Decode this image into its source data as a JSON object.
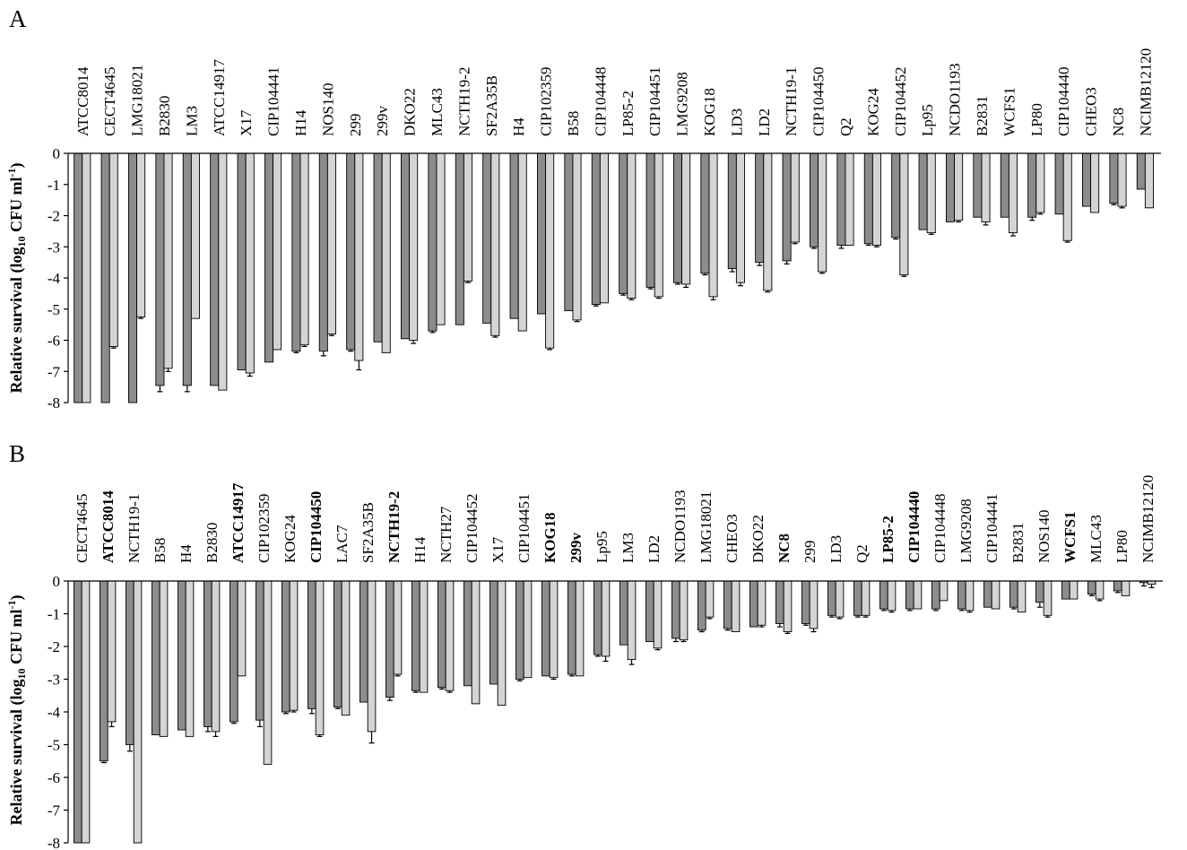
{
  "chart_data": [
    {
      "type": "bar",
      "panel": "A",
      "ylabel_main": "Relative survival (log",
      "ylabel_sub": "10",
      "ylabel_unit": " CFU ml",
      "ylabel_sup": "-1",
      "ylabel_close": ")",
      "ylim": [
        -8,
        0
      ],
      "yticks": [
        "0",
        "-1",
        "-2",
        "-3",
        "-4",
        "-5",
        "-6",
        "-7",
        "-8"
      ],
      "colors": {
        "series1": "#8c8c8c",
        "series2": "#d4d4d4"
      },
      "categories": [
        "ATCC8014",
        "CECT4645",
        "LMG18021",
        "B2830",
        "LM3",
        "ATCC14917",
        "X17",
        "CIP104441",
        "H14",
        "NOS140",
        "299",
        "299v",
        "DKO22",
        "MLC43",
        "NCTH19-2",
        "SF2A35B",
        "H4",
        "CIP102359",
        "B58",
        "CIP104448",
        "LP85-2",
        "CIP104451",
        "LMG9208",
        "KOG18",
        "LD3",
        "LD2",
        "NCTH19-1",
        "CIP104450",
        "Q2",
        "KOG24",
        "CIP104452",
        "Lp95",
        "NCDO1193",
        "B2831",
        "WCFS1",
        "LP80",
        "CIP104440",
        "CHEO3",
        "NC8",
        "NCIMB12120"
      ],
      "bold": [],
      "series": [
        {
          "values": [
            -8.0,
            -8.0,
            -8.0,
            -7.45,
            -7.45,
            -7.45,
            -6.95,
            -6.7,
            -6.35,
            -6.35,
            -6.3,
            -6.05,
            -5.95,
            -5.7,
            -5.5,
            -5.45,
            -5.3,
            -5.15,
            -5.05,
            -4.85,
            -4.5,
            -4.3,
            -4.15,
            -3.85,
            -3.7,
            -3.5,
            -3.45,
            -3.0,
            -2.95,
            -2.9,
            -2.7,
            -2.45,
            -2.2,
            -2.05,
            -2.05,
            -2.05,
            -1.95,
            -1.7,
            -1.6,
            -1.15
          ],
          "errors": [
            0,
            0,
            0,
            0.2,
            0.2,
            0,
            0,
            0,
            0.05,
            0.15,
            0.05,
            0,
            0,
            0.05,
            0,
            0,
            0,
            0,
            0,
            0.05,
            0.05,
            0.05,
            0.05,
            0.05,
            0.1,
            0.1,
            0.1,
            0.05,
            0.1,
            0.05,
            0.05,
            0,
            0,
            0,
            0,
            0.1,
            0,
            0,
            0.05,
            0
          ]
        },
        {
          "values": [
            -8.0,
            -6.2,
            -5.25,
            -6.9,
            -5.3,
            -7.6,
            -7.05,
            -6.3,
            -6.15,
            -5.8,
            -6.65,
            -6.4,
            -6.0,
            -5.5,
            -4.1,
            -5.85,
            -5.7,
            -6.25,
            -5.35,
            -4.8,
            -4.65,
            -4.6,
            -4.2,
            -4.6,
            -4.15,
            -4.4,
            -2.85,
            -3.8,
            -2.95,
            -2.95,
            -3.9,
            -2.55,
            -2.15,
            -2.2,
            -2.55,
            -1.9,
            -2.8,
            -1.9,
            -1.7,
            -1.75
          ],
          "errors": [
            0,
            0.05,
            0.05,
            0.1,
            0,
            0,
            0.1,
            0,
            0.05,
            0.05,
            0.3,
            0,
            0.1,
            0,
            0.05,
            0.05,
            0,
            0.05,
            0.05,
            0,
            0.05,
            0.05,
            0.1,
            0.1,
            0.1,
            0.05,
            0.05,
            0.05,
            0,
            0.05,
            0.05,
            0.05,
            0.05,
            0.1,
            0.1,
            0.05,
            0.05,
            0,
            0.05,
            0
          ]
        }
      ]
    },
    {
      "type": "bar",
      "panel": "B",
      "ylabel_main": "Relative survival (log",
      "ylabel_sub": "10",
      "ylabel_unit": " CFU ml",
      "ylabel_sup": "-1",
      "ylabel_close": ")",
      "ylim": [
        -8,
        0
      ],
      "yticks": [
        "0",
        "-1",
        "-2",
        "-3",
        "-4",
        "-5",
        "-6",
        "-7",
        "-8"
      ],
      "colors": {
        "series1": "#8c8c8c",
        "series2": "#d4d4d4"
      },
      "categories": [
        "CECT4645",
        "ATCC8014",
        "NCTH19-1",
        "B58",
        "H4",
        "B2830",
        "ATCC14917",
        "CIP102359",
        "KOG24",
        "CIP104450",
        "LAC7",
        "SF2A35B",
        "NCTH19-2",
        "H14",
        "NCTH27",
        "CIP104452",
        "X17",
        "CIP104451",
        "KOG18",
        "299v",
        "Lp95",
        "LM3",
        "LD2",
        "NCDO1193",
        "LMG18021",
        "CHEO3",
        "DKO22",
        "NC8",
        "299",
        "LD3",
        "Q2",
        "LP85-2",
        "CIP104440",
        "CIP104448",
        "LMG9208",
        "CIP104441",
        "B2831",
        "NOS140",
        "WCFS1",
        "MLC43",
        "LP80",
        "NCIMB12120"
      ],
      "bold": [
        "ATCC8014",
        "ATCC14917",
        "CIP104450",
        "NCTH19-2",
        "KOG18",
        "299v",
        "NC8",
        "LP85-2",
        "CIP104440",
        "WCFS1"
      ],
      "series": [
        {
          "values": [
            -8.0,
            -5.5,
            -5.0,
            -4.7,
            -4.55,
            -4.45,
            -4.3,
            -4.25,
            -4.0,
            -3.9,
            -3.85,
            -3.7,
            -3.55,
            -3.35,
            -3.25,
            -3.2,
            -3.15,
            -3.0,
            -2.9,
            -2.85,
            -2.25,
            -1.95,
            -1.85,
            -1.75,
            -1.5,
            -1.45,
            -1.4,
            -1.3,
            -1.3,
            -1.05,
            -1.05,
            -0.85,
            -0.85,
            -0.85,
            -0.85,
            -0.8,
            -0.8,
            -0.65,
            -0.55,
            -0.4,
            -0.3,
            -0.05
          ],
          "errors": [
            0,
            0.05,
            0.2,
            0,
            0,
            0.15,
            0.05,
            0.2,
            0.05,
            0.15,
            0.05,
            0,
            0.1,
            0.05,
            0.05,
            0,
            0,
            0.05,
            0,
            0.05,
            0.05,
            0,
            0,
            0.1,
            0.05,
            0.05,
            0,
            0.1,
            0.05,
            0.05,
            0.05,
            0.05,
            0.05,
            0.05,
            0.05,
            0,
            0.05,
            0.15,
            0,
            0.05,
            0.05,
            0.1
          ]
        },
        {
          "values": [
            -8.0,
            -4.3,
            -8.0,
            -4.75,
            -4.75,
            -4.6,
            -2.9,
            -5.6,
            -3.95,
            -4.7,
            -4.1,
            -4.6,
            -2.85,
            -3.4,
            -3.35,
            -3.75,
            -3.8,
            -2.95,
            -2.95,
            -2.9,
            -2.3,
            -2.4,
            -2.05,
            -1.8,
            -1.1,
            -1.55,
            -1.35,
            -1.55,
            -1.45,
            -1.1,
            -1.05,
            -0.9,
            -0.85,
            -0.6,
            -0.9,
            -0.85,
            -0.95,
            -1.05,
            -0.55,
            -0.55,
            -0.45,
            -0.1
          ],
          "errors": [
            0,
            0.15,
            0,
            0,
            0,
            0.15,
            0,
            0,
            0.05,
            0.05,
            0,
            0.35,
            0.05,
            0,
            0.05,
            0,
            0,
            0,
            0.05,
            0,
            0.15,
            0.15,
            0.05,
            0.05,
            0.05,
            0,
            0.05,
            0.05,
            0.1,
            0.05,
            0.05,
            0.05,
            0,
            0,
            0.05,
            0,
            0,
            0.05,
            0,
            0.05,
            0,
            0.1
          ]
        }
      ]
    }
  ]
}
